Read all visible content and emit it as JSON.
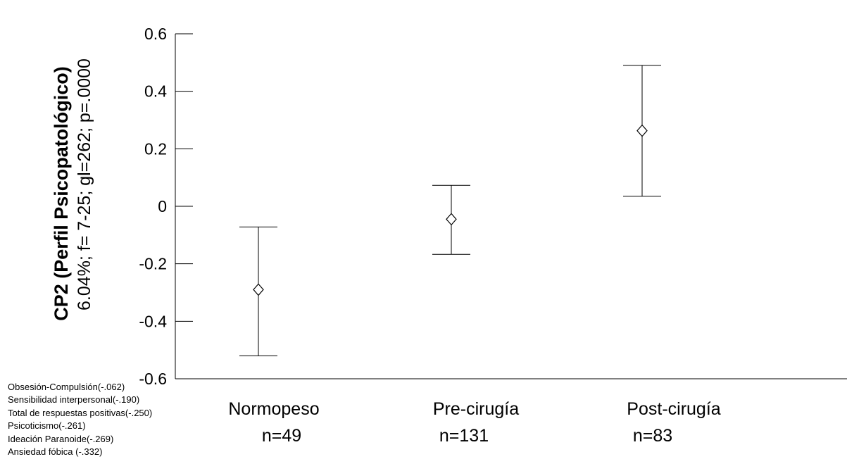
{
  "chart_data": {
    "type": "errorbar",
    "ylabel": "CP2 (Perfil Psicopatológico)",
    "ylabel_sub": "6.04%; f= 7-25; gl=262; p=.0000",
    "ylim": [
      -0.6,
      0.6
    ],
    "yticks": [
      "0.6",
      "0.4",
      "0.2",
      "0",
      "-0.2",
      "-0.4",
      "-0.6"
    ],
    "ytick_values": [
      0.6,
      0.4,
      0.2,
      0,
      -0.2,
      -0.4,
      -0.6
    ],
    "categories": [
      "Normopeso",
      "Pre-cirugía",
      "Post-cirugía"
    ],
    "n_labels": [
      "n=49",
      "n=131",
      "n=83"
    ],
    "means": [
      -0.29,
      -0.045,
      0.263
    ],
    "lower": [
      -0.52,
      -0.167,
      0.035
    ],
    "upper": [
      -0.072,
      0.073,
      0.49
    ],
    "marker": "diamond",
    "grid": false
  },
  "loadings": [
    "Obsesión-Compulsión(-.062)",
    "Sensibilidad interpersonal(-.190)",
    "Total de respuestas positivas(-.250)",
    "Psicoticismo(-.261)",
    "Ideación Paranoide(-.269)",
    "Ansiedad fóbica (-.332)"
  ]
}
